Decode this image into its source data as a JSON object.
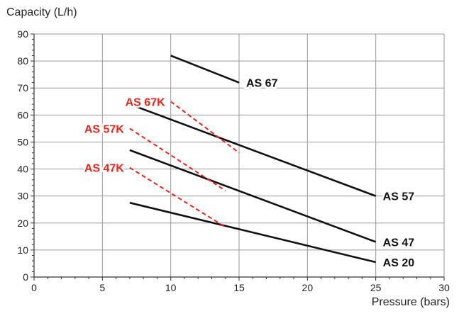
{
  "chart_data": {
    "type": "line",
    "xlabel": "Pressure (bars)",
    "ylabel": "Capacity (L/h)",
    "xlim": [
      0,
      30
    ],
    "ylim": [
      0,
      90
    ],
    "xticks": [
      0,
      5,
      10,
      15,
      20,
      25,
      30
    ],
    "yticks": [
      0,
      10,
      20,
      30,
      40,
      50,
      60,
      70,
      80,
      90
    ],
    "grid": true,
    "minor_ticks": true,
    "series": [
      {
        "name": "AS 67",
        "color": "#111111",
        "style": "solid",
        "x": [
          10,
          15
        ],
        "y": [
          82,
          72
        ],
        "label_side": "right"
      },
      {
        "name": "AS 57",
        "color": "#111111",
        "style": "solid",
        "x": [
          7,
          25
        ],
        "y": [
          64,
          30
        ],
        "label_side": "right"
      },
      {
        "name": "AS 47",
        "color": "#111111",
        "style": "solid",
        "x": [
          7,
          25
        ],
        "y": [
          47,
          13
        ],
        "label_side": "right"
      },
      {
        "name": "AS 20",
        "color": "#111111",
        "style": "solid",
        "x": [
          7,
          25
        ],
        "y": [
          27.5,
          5.5
        ],
        "label_side": "right"
      },
      {
        "name": "AS 67K",
        "color": "#e8261e",
        "style": "dashed",
        "x": [
          10,
          15
        ],
        "y": [
          65,
          46
        ],
        "label_side": "left"
      },
      {
        "name": "AS 57K",
        "color": "#e8261e",
        "style": "dashed",
        "x": [
          7,
          14
        ],
        "y": [
          55,
          32
        ],
        "label_side": "left"
      },
      {
        "name": "AS 47K",
        "color": "#e8261e",
        "style": "dashed",
        "x": [
          7,
          14
        ],
        "y": [
          40.5,
          18.5
        ],
        "label_side": "left"
      }
    ]
  }
}
